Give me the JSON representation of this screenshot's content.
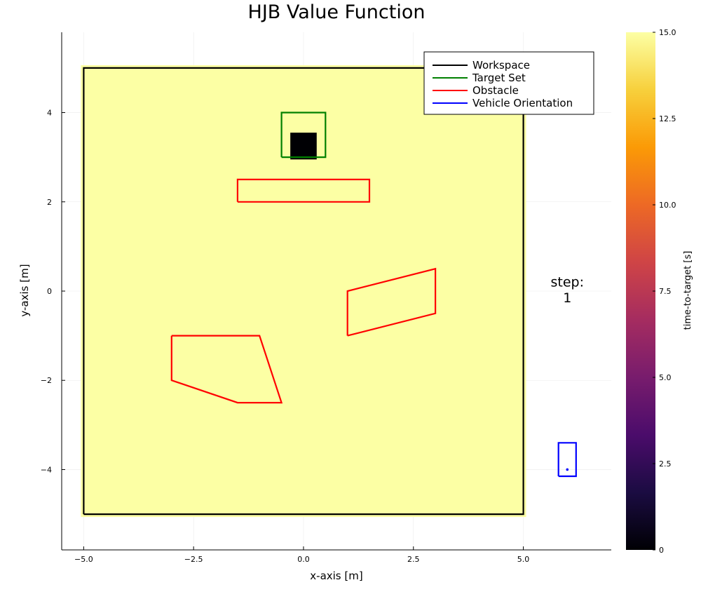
{
  "chart_data": {
    "type": "heatmap",
    "title": "HJB Value Function",
    "xlabel": "x-axis [m]",
    "ylabel": "y-axis [m]",
    "xlim": [
      -5.5,
      7.0
    ],
    "ylim": [
      -5.8,
      5.8
    ],
    "x_ticks": [
      -5.0,
      -2.5,
      0.0,
      2.5,
      5.0
    ],
    "x_tick_labels": [
      "−5.0",
      "−2.5",
      "0.0",
      "2.5",
      "5.0"
    ],
    "y_ticks": [
      -4,
      -2,
      0,
      2,
      4
    ],
    "y_tick_labels": [
      "−4",
      "−2",
      "0",
      "2",
      "4"
    ],
    "grid": true,
    "legend_position": "top-right",
    "heatmap": {
      "extent": {
        "x": [
          -5,
          5
        ],
        "y": [
          -5,
          5
        ]
      },
      "background_value": 15.0,
      "target_value_region": {
        "x": [
          -0.3,
          0.3
        ],
        "y": [
          2.95,
          3.55
        ],
        "value": 0.0
      }
    },
    "colorbar": {
      "label": "time-to-target [s]",
      "range": [
        0,
        15
      ],
      "ticks": [
        0,
        2.5,
        5.0,
        7.5,
        10.0,
        12.5,
        15.0
      ],
      "tick_labels": [
        "0",
        "2.5",
        "5.0",
        "7.5",
        "10.0",
        "12.5",
        "15.0"
      ],
      "colormap": [
        "#000004",
        "#1b0c42",
        "#4b0c6b",
        "#781c6d",
        "#a52c60",
        "#cf4446",
        "#ed6925",
        "#fb9a06",
        "#f7d03c",
        "#fcffa4"
      ]
    },
    "series": [
      {
        "name": "Workspace",
        "color": "#000000",
        "shapes": [
          [
            [
              -5,
              -5
            ],
            [
              5,
              -5
            ],
            [
              5,
              5
            ],
            [
              -5,
              5
            ],
            [
              -5,
              -5
            ]
          ]
        ]
      },
      {
        "name": "Target Set",
        "color": "#008000",
        "shapes": [
          [
            [
              -0.5,
              3.0
            ],
            [
              0.5,
              3.0
            ],
            [
              0.5,
              4.0
            ],
            [
              -0.5,
              4.0
            ],
            [
              -0.5,
              3.0
            ]
          ]
        ]
      },
      {
        "name": "Obstacle",
        "color": "#ff0000",
        "shapes": [
          [
            [
              -1.5,
              2.0
            ],
            [
              1.5,
              2.0
            ],
            [
              1.5,
              2.5
            ],
            [
              -1.5,
              2.5
            ],
            [
              -1.5,
              2.0
            ]
          ],
          [
            [
              1.0,
              -1.0
            ],
            [
              3.0,
              -0.5
            ],
            [
              3.0,
              0.5
            ],
            [
              1.0,
              0.0
            ],
            [
              1.0,
              -1.0
            ]
          ],
          [
            [
              -3.0,
              -1.0
            ],
            [
              -1.0,
              -1.0
            ],
            [
              -0.5,
              -2.5
            ],
            [
              -1.5,
              -2.5
            ],
            [
              -3.0,
              -2.0
            ],
            [
              -3.0,
              -1.0
            ]
          ]
        ]
      },
      {
        "name": "Vehicle Orientation",
        "color": "#0000ff",
        "shapes": [
          [
            [
              5.8,
              -4.15
            ],
            [
              6.2,
              -4.15
            ],
            [
              6.2,
              -3.4
            ],
            [
              5.8,
              -3.4
            ],
            [
              5.8,
              -4.15
            ]
          ]
        ],
        "points": [
          [
            6.0,
            -4.0
          ]
        ]
      }
    ],
    "annotations": [
      {
        "text": "step:",
        "x": 6.0,
        "y": 0.1
      },
      {
        "text": "1",
        "x": 6.0,
        "y": -0.25
      }
    ]
  }
}
